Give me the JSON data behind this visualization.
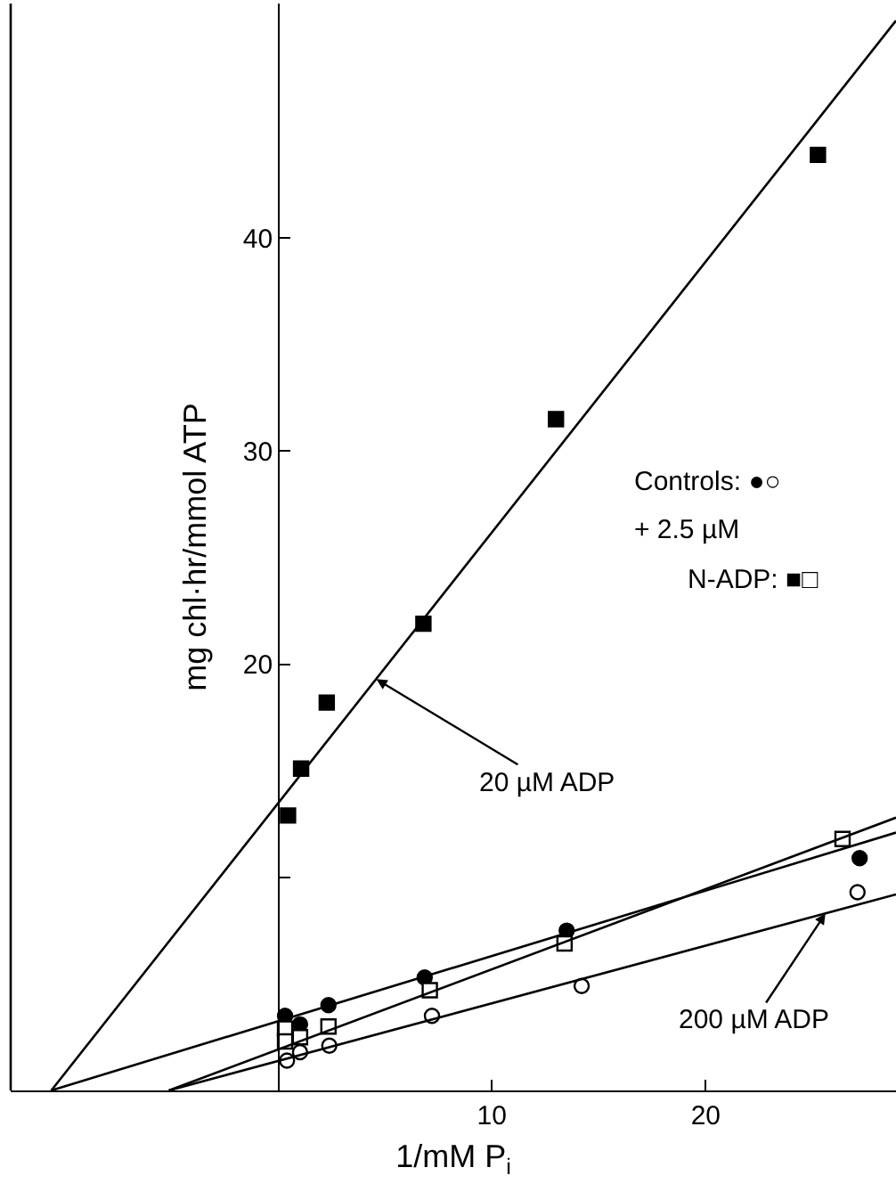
{
  "chart_data": {
    "type": "scatter",
    "xlabel": "1/mM P$_{i}$",
    "ylabel": "mg chl·hr/mmol ATP",
    "xlim": [
      -12.5,
      28.9
    ],
    "ylim": [
      0,
      51
    ],
    "xticks": [
      10,
      20
    ],
    "yticks": [
      {
        "value": 10,
        "label": null
      },
      20,
      30,
      40
    ],
    "series": [
      {
        "marker": "square",
        "color": "#000000",
        "x": [
          0.47,
          1.08,
          2.28,
          6.8,
          13.0,
          25.25
        ],
        "values": [
          12.9,
          15.1,
          18.2,
          21.9,
          31.5,
          43.9
        ]
      },
      {
        "marker": "circle",
        "color": "#000000",
        "x": [
          0.33,
          1.03,
          2.36,
          6.86,
          13.5,
          27.2
        ],
        "values": [
          3.5,
          3.1,
          4.0,
          5.3,
          7.5,
          10.9
        ]
      },
      {
        "marker": "square",
        "color": "#ffffff",
        "x": [
          0.33,
          0.33,
          1.03,
          2.36,
          7.1,
          13.4,
          26.4
        ],
        "values": [
          2.9,
          2.3,
          2.5,
          3.0,
          4.7,
          6.9,
          11.8
        ]
      },
      {
        "marker": "circle",
        "color": "#ffffff",
        "x": [
          0.42,
          1.03,
          2.4,
          7.2,
          14.2,
          27.1
        ],
        "values": [
          1.4,
          1.8,
          2.1,
          3.5,
          4.9,
          9.3
        ]
      },
      {
        "type": "line",
        "marker": "none",
        "line_style": "solid",
        "color": "#000000",
        "x": [
          -10.6,
          28.9
        ],
        "values": [
          0,
          50.2
        ]
      },
      {
        "type": "line",
        "marker": "none",
        "line_style": "solid",
        "color": "#000000",
        "x": [
          -10.6,
          28.9
        ],
        "values": [
          0,
          12.1
        ]
      },
      {
        "type": "line",
        "marker": "none",
        "line_style": "solid",
        "color": "#000000",
        "x": [
          -5.1,
          28.9
        ],
        "values": [
          0,
          12.8
        ]
      },
      {
        "type": "line",
        "marker": "none",
        "line_style": "solid",
        "color": "#000000",
        "x": [
          -5.1,
          28.9
        ],
        "values": [
          0,
          9.2
        ]
      }
    ],
    "annotations": [
      {
        "text": "20 µM ADP",
        "x": 4.6,
        "y": 19.3
      },
      {
        "text": "200 µM ADP",
        "x": 25.6,
        "y": 8.3
      },
      "Controls: ●○",
      "+ 2.5 µM",
      "N-ADP: ■□"
    ]
  }
}
